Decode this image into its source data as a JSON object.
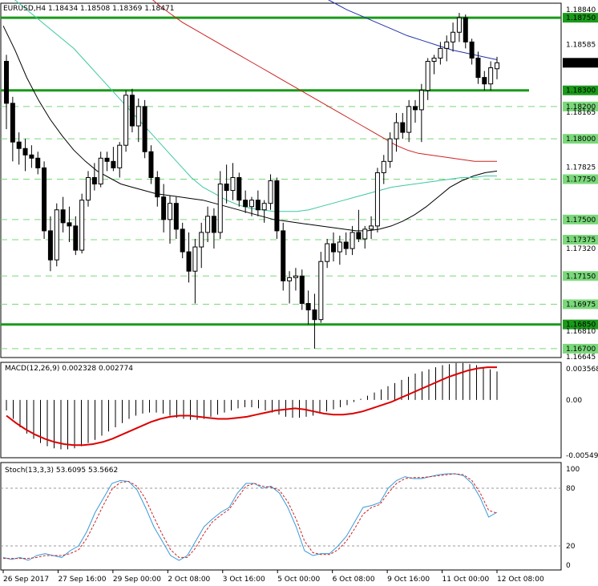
{
  "chart_data": [
    {
      "type": "candlestick",
      "panel": "price",
      "symbol_label": "EURUSD,H4",
      "ohlc_header": "1.18434 1.18508 1.18369 1.18471",
      "current_price_label": "1.18471",
      "ylim": [
        1.16645,
        1.1884
      ],
      "y_tick_labels": [
        "1.18840",
        "1.18750",
        "1.18585",
        "1.18471",
        "1.18300",
        "1.18200",
        "1.18165",
        "1.18000",
        "1.17825",
        "1.17750",
        "1.17500",
        "1.17375",
        "1.17320",
        "1.17150",
        "1.16975",
        "1.16850",
        "1.16810",
        "1.16700",
        "1.16645"
      ],
      "horizontal_levels": [
        {
          "value": 1.1875,
          "label": "1.18750",
          "style": "thick"
        },
        {
          "value": 1.183,
          "label": "1.18300",
          "style": "thick"
        },
        {
          "value": 1.1685,
          "label": "1.16850",
          "style": "thick"
        },
        {
          "value": 1.182,
          "label": "1.18200",
          "style": "dashed"
        },
        {
          "value": 1.18,
          "label": "1.18000",
          "style": "dashed"
        },
        {
          "value": 1.1775,
          "label": "1.17750",
          "style": "dashed"
        },
        {
          "value": 1.175,
          "label": "1.17500",
          "style": "dashed"
        },
        {
          "value": 1.17375,
          "label": "1.17375",
          "style": "dashed"
        },
        {
          "value": 1.1715,
          "label": "1.17150",
          "style": "dashed"
        },
        {
          "value": 1.16975,
          "label": "1.16975",
          "style": "dashed"
        },
        {
          "value": 1.167,
          "label": "1.16700",
          "style": "dashed"
        }
      ],
      "candles": [
        [
          1.1848,
          1.1852,
          1.1806,
          1.1822
        ],
        [
          1.1822,
          1.1826,
          1.1786,
          1.1798
        ],
        [
          1.1798,
          1.1804,
          1.1784,
          1.1794
        ],
        [
          1.1794,
          1.18,
          1.178,
          1.179
        ],
        [
          1.179,
          1.1796,
          1.1782,
          1.1788
        ],
        [
          1.1788,
          1.1792,
          1.1778,
          1.1782
        ],
        [
          1.1782,
          1.1786,
          1.1738,
          1.1743
        ],
        [
          1.1743,
          1.1752,
          1.1718,
          1.1725
        ],
        [
          1.1725,
          1.176,
          1.1721,
          1.1756
        ],
        [
          1.1756,
          1.1764,
          1.1742,
          1.1748
        ],
        [
          1.1748,
          1.1758,
          1.1736,
          1.1746
        ],
        [
          1.1746,
          1.1752,
          1.1728,
          1.1731
        ],
        [
          1.1731,
          1.1766,
          1.1729,
          1.1762
        ],
        [
          1.1762,
          1.178,
          1.1758,
          1.1776
        ],
        [
          1.1776,
          1.1785,
          1.1768,
          1.1772
        ],
        [
          1.1772,
          1.1792,
          1.177,
          1.1788
        ],
        [
          1.1788,
          1.1792,
          1.178,
          1.1786
        ],
        [
          1.1786,
          1.1795,
          1.178,
          1.1782
        ],
        [
          1.1782,
          1.1798,
          1.1776,
          1.1796
        ],
        [
          1.1796,
          1.183,
          1.1792,
          1.1827
        ],
        [
          1.1827,
          1.1831,
          1.1804,
          1.1808
        ],
        [
          1.1808,
          1.1825,
          1.1798,
          1.182
        ],
        [
          1.182,
          1.1824,
          1.1788,
          1.1792
        ],
        [
          1.1792,
          1.1796,
          1.1772,
          1.1776
        ],
        [
          1.1776,
          1.178,
          1.1758,
          1.1764
        ],
        [
          1.1764,
          1.1772,
          1.1742,
          1.175
        ],
        [
          1.175,
          1.1765,
          1.1735,
          1.176
        ],
        [
          1.176,
          1.1764,
          1.1738,
          1.1744
        ],
        [
          1.1744,
          1.1748,
          1.1726,
          1.173
        ],
        [
          1.173,
          1.1742,
          1.1711,
          1.1718
        ],
        [
          1.1718,
          1.1738,
          1.1698,
          1.1733
        ],
        [
          1.1733,
          1.1748,
          1.172,
          1.1742
        ],
        [
          1.1742,
          1.1758,
          1.1736,
          1.1752
        ],
        [
          1.1752,
          1.1757,
          1.1732,
          1.1742
        ],
        [
          1.1742,
          1.178,
          1.1738,
          1.1772
        ],
        [
          1.1772,
          1.1784,
          1.176,
          1.1768
        ],
        [
          1.1768,
          1.1785,
          1.1762,
          1.1776
        ],
        [
          1.1776,
          1.1779,
          1.1758,
          1.1762
        ],
        [
          1.1762,
          1.1768,
          1.1754,
          1.1758
        ],
        [
          1.1758,
          1.1764,
          1.1752,
          1.1762
        ],
        [
          1.1762,
          1.1768,
          1.1752,
          1.1756
        ],
        [
          1.1756,
          1.1762,
          1.1748,
          1.176
        ],
        [
          1.176,
          1.1778,
          1.1756,
          1.1774
        ],
        [
          1.1774,
          1.1776,
          1.1738,
          1.1743
        ],
        [
          1.1743,
          1.1748,
          1.1706,
          1.1712
        ],
        [
          1.1712,
          1.1718,
          1.1698,
          1.1714
        ],
        [
          1.1714,
          1.172,
          1.1706,
          1.1715
        ],
        [
          1.1715,
          1.1719,
          1.1694,
          1.1698
        ],
        [
          1.1698,
          1.1706,
          1.1685,
          1.1694
        ],
        [
          1.1694,
          1.1704,
          1.167,
          1.1688
        ],
        [
          1.1688,
          1.173,
          1.1686,
          1.1724
        ],
        [
          1.1724,
          1.1738,
          1.172,
          1.1735
        ],
        [
          1.1735,
          1.1742,
          1.1724,
          1.173
        ],
        [
          1.173,
          1.174,
          1.1722,
          1.1736
        ],
        [
          1.1736,
          1.1742,
          1.1728,
          1.1732
        ],
        [
          1.1732,
          1.1746,
          1.1728,
          1.1742
        ],
        [
          1.1742,
          1.1756,
          1.1736,
          1.1738
        ],
        [
          1.1738,
          1.1746,
          1.1732,
          1.1744
        ],
        [
          1.1744,
          1.1752,
          1.1738,
          1.1746
        ],
        [
          1.1746,
          1.1782,
          1.1742,
          1.1779
        ],
        [
          1.1779,
          1.179,
          1.1772,
          1.1786
        ],
        [
          1.1786,
          1.1804,
          1.1782,
          1.18
        ],
        [
          1.18,
          1.1816,
          1.1792,
          1.181
        ],
        [
          1.181,
          1.1816,
          1.18,
          1.1804
        ],
        [
          1.1804,
          1.1824,
          1.1798,
          1.182
        ],
        [
          1.182,
          1.1824,
          1.181,
          1.1818
        ],
        [
          1.1818,
          1.1834,
          1.1798,
          1.183
        ],
        [
          1.183,
          1.185,
          1.1824,
          1.1848
        ],
        [
          1.1848,
          1.1852,
          1.184,
          1.185
        ],
        [
          1.185,
          1.186,
          1.1846,
          1.1856
        ],
        [
          1.1856,
          1.1864,
          1.1848,
          1.186
        ],
        [
          1.186,
          1.1872,
          1.1854,
          1.1866
        ],
        [
          1.1866,
          1.1878,
          1.186,
          1.1875
        ],
        [
          1.1875,
          1.1877,
          1.1856,
          1.186
        ],
        [
          1.186,
          1.1862,
          1.1846,
          1.185
        ],
        [
          1.185,
          1.1854,
          1.1834,
          1.1838
        ],
        [
          1.1838,
          1.1842,
          1.183,
          1.1834
        ],
        [
          1.1834,
          1.1848,
          1.183,
          1.1844
        ],
        [
          1.18434,
          1.18508,
          1.18369,
          1.18471
        ]
      ],
      "moving_averages": [
        {
          "color": "#000000",
          "values": [
            1.187,
            1.1855,
            1.1838,
            1.1824,
            1.1812,
            1.1802,
            1.1793,
            1.1786,
            1.178,
            1.1776,
            1.1772,
            1.177,
            1.1768,
            1.1766,
            1.1765,
            1.1764,
            1.1763,
            1.1762,
            1.176,
            1.1758,
            1.1756,
            1.1754,
            1.1752,
            1.175,
            1.1749,
            1.1748,
            1.1747,
            1.1746,
            1.1745,
            1.1744,
            1.1743,
            1.1743,
            1.1744,
            1.1746,
            1.1749,
            1.1753,
            1.1758,
            1.1764,
            1.177,
            1.1774,
            1.1777,
            1.1779,
            1.178
          ]
        },
        {
          "color": "#3cc8a0",
          "values": [
            1.189,
            1.1886,
            1.188,
            1.1874,
            1.1868,
            1.1862,
            1.1856,
            1.1848,
            1.184,
            1.1832,
            1.1824,
            1.1816,
            1.1808,
            1.18,
            1.1792,
            1.1784,
            1.1776,
            1.177,
            1.1766,
            1.1762,
            1.1759,
            1.1757,
            1.1756,
            1.1755,
            1.1755,
            1.1755,
            1.1756,
            1.1758,
            1.176,
            1.1762,
            1.1764,
            1.1766,
            1.1768,
            1.177,
            1.1771,
            1.1772,
            1.1773,
            1.1774,
            1.1775,
            1.1776,
            1.1776,
            1.1777,
            1.1777
          ]
        },
        {
          "color": "#cc2222",
          "values": [
            1.191,
            1.1906,
            1.19,
            1.1894,
            1.1888,
            1.1882,
            1.1877,
            1.1872,
            1.1868,
            1.1864,
            1.186,
            1.1856,
            1.1852,
            1.1848,
            1.1844,
            1.184,
            1.1836,
            1.1832,
            1.1828,
            1.1824,
            1.182,
            1.1816,
            1.1812,
            1.1808,
            1.1804,
            1.18,
            1.1796,
            1.1793,
            1.1791,
            1.179,
            1.1789,
            1.1788,
            1.1787,
            1.1786,
            1.1786,
            1.1786
          ]
        },
        {
          "color": "#2233aa",
          "values": [
            1.192,
            1.1912,
            1.1904,
            1.1896,
            1.189,
            1.1885,
            1.188,
            1.1876,
            1.1872,
            1.1868,
            1.1864,
            1.1861,
            1.1858,
            1.1855,
            1.1853,
            1.1851,
            1.1849
          ]
        }
      ]
    },
    {
      "type": "bar+line",
      "panel": "macd",
      "title": "MACD(12,26,9) 0.002328 0.002774",
      "ylim": [
        -0.005495,
        0.003568
      ],
      "y_tick_labels": [
        "0.003568",
        "0.00",
        "-0.005495"
      ],
      "histogram_color": "#000000",
      "signal_color": "#dd0000",
      "histogram": [
        -0.001,
        -0.0018,
        -0.0026,
        -0.0032,
        -0.0037,
        -0.0041,
        -0.0044,
        -0.0046,
        -0.0047,
        -0.0047,
        -0.0046,
        -0.0044,
        -0.0041,
        -0.0038,
        -0.0034,
        -0.003,
        -0.0026,
        -0.0022,
        -0.0018,
        -0.0015,
        -0.0013,
        -0.0012,
        -0.0012,
        -0.0013,
        -0.0015,
        -0.0017,
        -0.0018,
        -0.0019,
        -0.0019,
        -0.0018,
        -0.0016,
        -0.0014,
        -0.0012,
        -0.001,
        -0.0008,
        -0.0007,
        -0.0007,
        -0.0008,
        -0.001,
        -0.0012,
        -0.0014,
        -0.0016,
        -0.0017,
        -0.0017,
        -0.0016,
        -0.0015,
        -0.0013,
        -0.0011,
        -0.0009,
        -0.0007,
        -0.0005,
        -0.0002,
        0.0001,
        0.0004,
        0.0007,
        0.001,
        0.0013,
        0.0016,
        0.0019,
        0.0022,
        0.0025,
        0.0027,
        0.0029,
        0.0031,
        0.0033,
        0.0034,
        0.0035,
        0.0035,
        0.0034,
        0.0033,
        0.0031,
        0.0029,
        0.0027
      ],
      "signal": [
        -0.0015,
        -0.0022,
        -0.0028,
        -0.0033,
        -0.0037,
        -0.004,
        -0.0042,
        -0.0043,
        -0.0043,
        -0.0042,
        -0.004,
        -0.0037,
        -0.0033,
        -0.0029,
        -0.0025,
        -0.0021,
        -0.0018,
        -0.0016,
        -0.0015,
        -0.0015,
        -0.0016,
        -0.0017,
        -0.0018,
        -0.0018,
        -0.0017,
        -0.0016,
        -0.0014,
        -0.0012,
        -0.001,
        -0.0009,
        -0.0008,
        -0.0009,
        -0.0011,
        -0.0013,
        -0.0014,
        -0.0014,
        -0.0013,
        -0.0011,
        -0.0008,
        -0.0005,
        -0.0002,
        0.0002,
        0.0006,
        0.001,
        0.0014,
        0.0018,
        0.0022,
        0.0025,
        0.0028,
        0.003,
        0.0031,
        0.0031
      ]
    },
    {
      "type": "line",
      "panel": "stochastic",
      "title": "Stoch(13,3,3) 53.6095 53.5662",
      "ylim": [
        0,
        100
      ],
      "y_tick_labels": [
        "100",
        "80",
        "20",
        "0"
      ],
      "levels": [
        80,
        20
      ],
      "series": [
        {
          "color": "#3a9ad9",
          "values": [
            8,
            6,
            8,
            5,
            10,
            12,
            10,
            8,
            15,
            20,
            35,
            55,
            70,
            85,
            88,
            87,
            78,
            60,
            40,
            25,
            10,
            5,
            10,
            25,
            40,
            48,
            55,
            60,
            75,
            85,
            85,
            80,
            82,
            75,
            60,
            40,
            15,
            10,
            12,
            12,
            20,
            30,
            45,
            60,
            62,
            65,
            80,
            88,
            92,
            90,
            90,
            92,
            94,
            95,
            95,
            93,
            85,
            70,
            50,
            55
          ]
        },
        {
          "color": "#cc2222",
          "values": [
            7,
            7,
            7,
            7,
            8,
            10,
            10,
            10,
            12,
            16,
            28,
            45,
            63,
            79,
            86,
            87,
            82,
            69,
            50,
            32,
            16,
            8,
            8,
            18,
            33,
            45,
            52,
            58,
            70,
            82,
            85,
            82,
            81,
            78,
            66,
            48,
            25,
            13,
            11,
            11,
            16,
            25,
            38,
            53,
            60,
            63,
            75,
            85,
            90,
            91,
            91,
            92,
            93,
            94,
            95,
            94,
            88,
            75,
            57,
            54
          ]
        }
      ]
    },
    {
      "type": "axis",
      "panel": "time",
      "x_tick_labels": [
        "26 Sep 2017",
        "27 Sep 16:00",
        "29 Sep 00:00",
        "2 Oct 08:00",
        "3 Oct 16:00",
        "5 Oct 00:00",
        "6 Oct 08:00",
        "9 Oct 16:00",
        "11 Oct 00:00",
        "12 Oct 08:00"
      ]
    }
  ]
}
